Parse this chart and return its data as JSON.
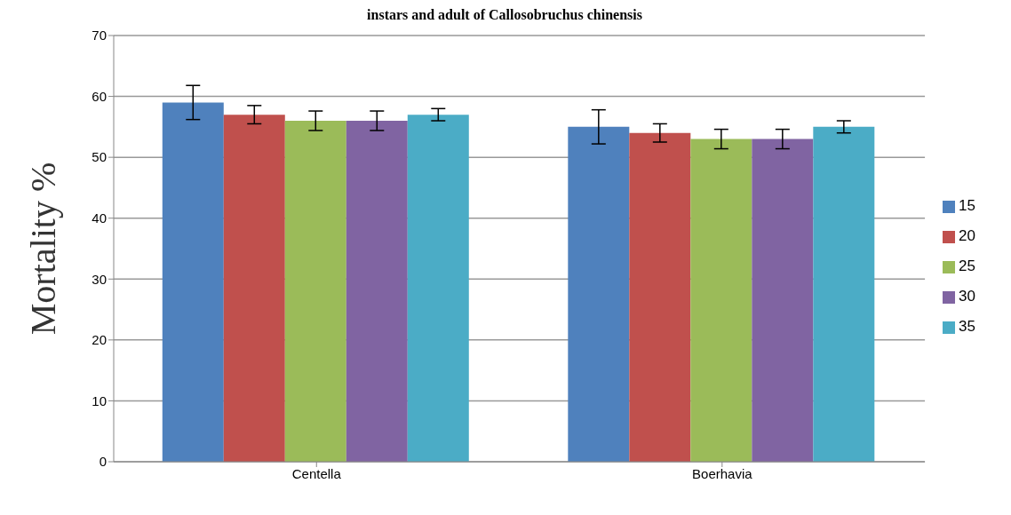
{
  "chart_data": {
    "type": "bar",
    "title": "instars and adult of Callosobruchus chinensis",
    "ylabel": "Mortality   %",
    "categories": [
      "Centella",
      "Boerhavia"
    ],
    "series": [
      {
        "name": "15",
        "color": "#4f81bd",
        "values": [
          59,
          55
        ],
        "errors": [
          2.8,
          2.8
        ]
      },
      {
        "name": "20",
        "color": "#c0504d",
        "values": [
          57,
          54
        ],
        "errors": [
          1.5,
          1.5
        ]
      },
      {
        "name": "25",
        "color": "#9bbb59",
        "values": [
          56,
          53
        ],
        "errors": [
          1.6,
          1.6
        ]
      },
      {
        "name": "30",
        "color": "#8064a2",
        "values": [
          56,
          53
        ],
        "errors": [
          1.6,
          1.6
        ]
      },
      {
        "name": "35",
        "color": "#4bacc6",
        "values": [
          57,
          55
        ],
        "errors": [
          1,
          1
        ]
      }
    ],
    "ylim": [
      0,
      70
    ],
    "yticks": [
      0,
      10,
      20,
      30,
      40,
      50,
      60,
      70
    ],
    "grid": "y",
    "legend": "right"
  }
}
